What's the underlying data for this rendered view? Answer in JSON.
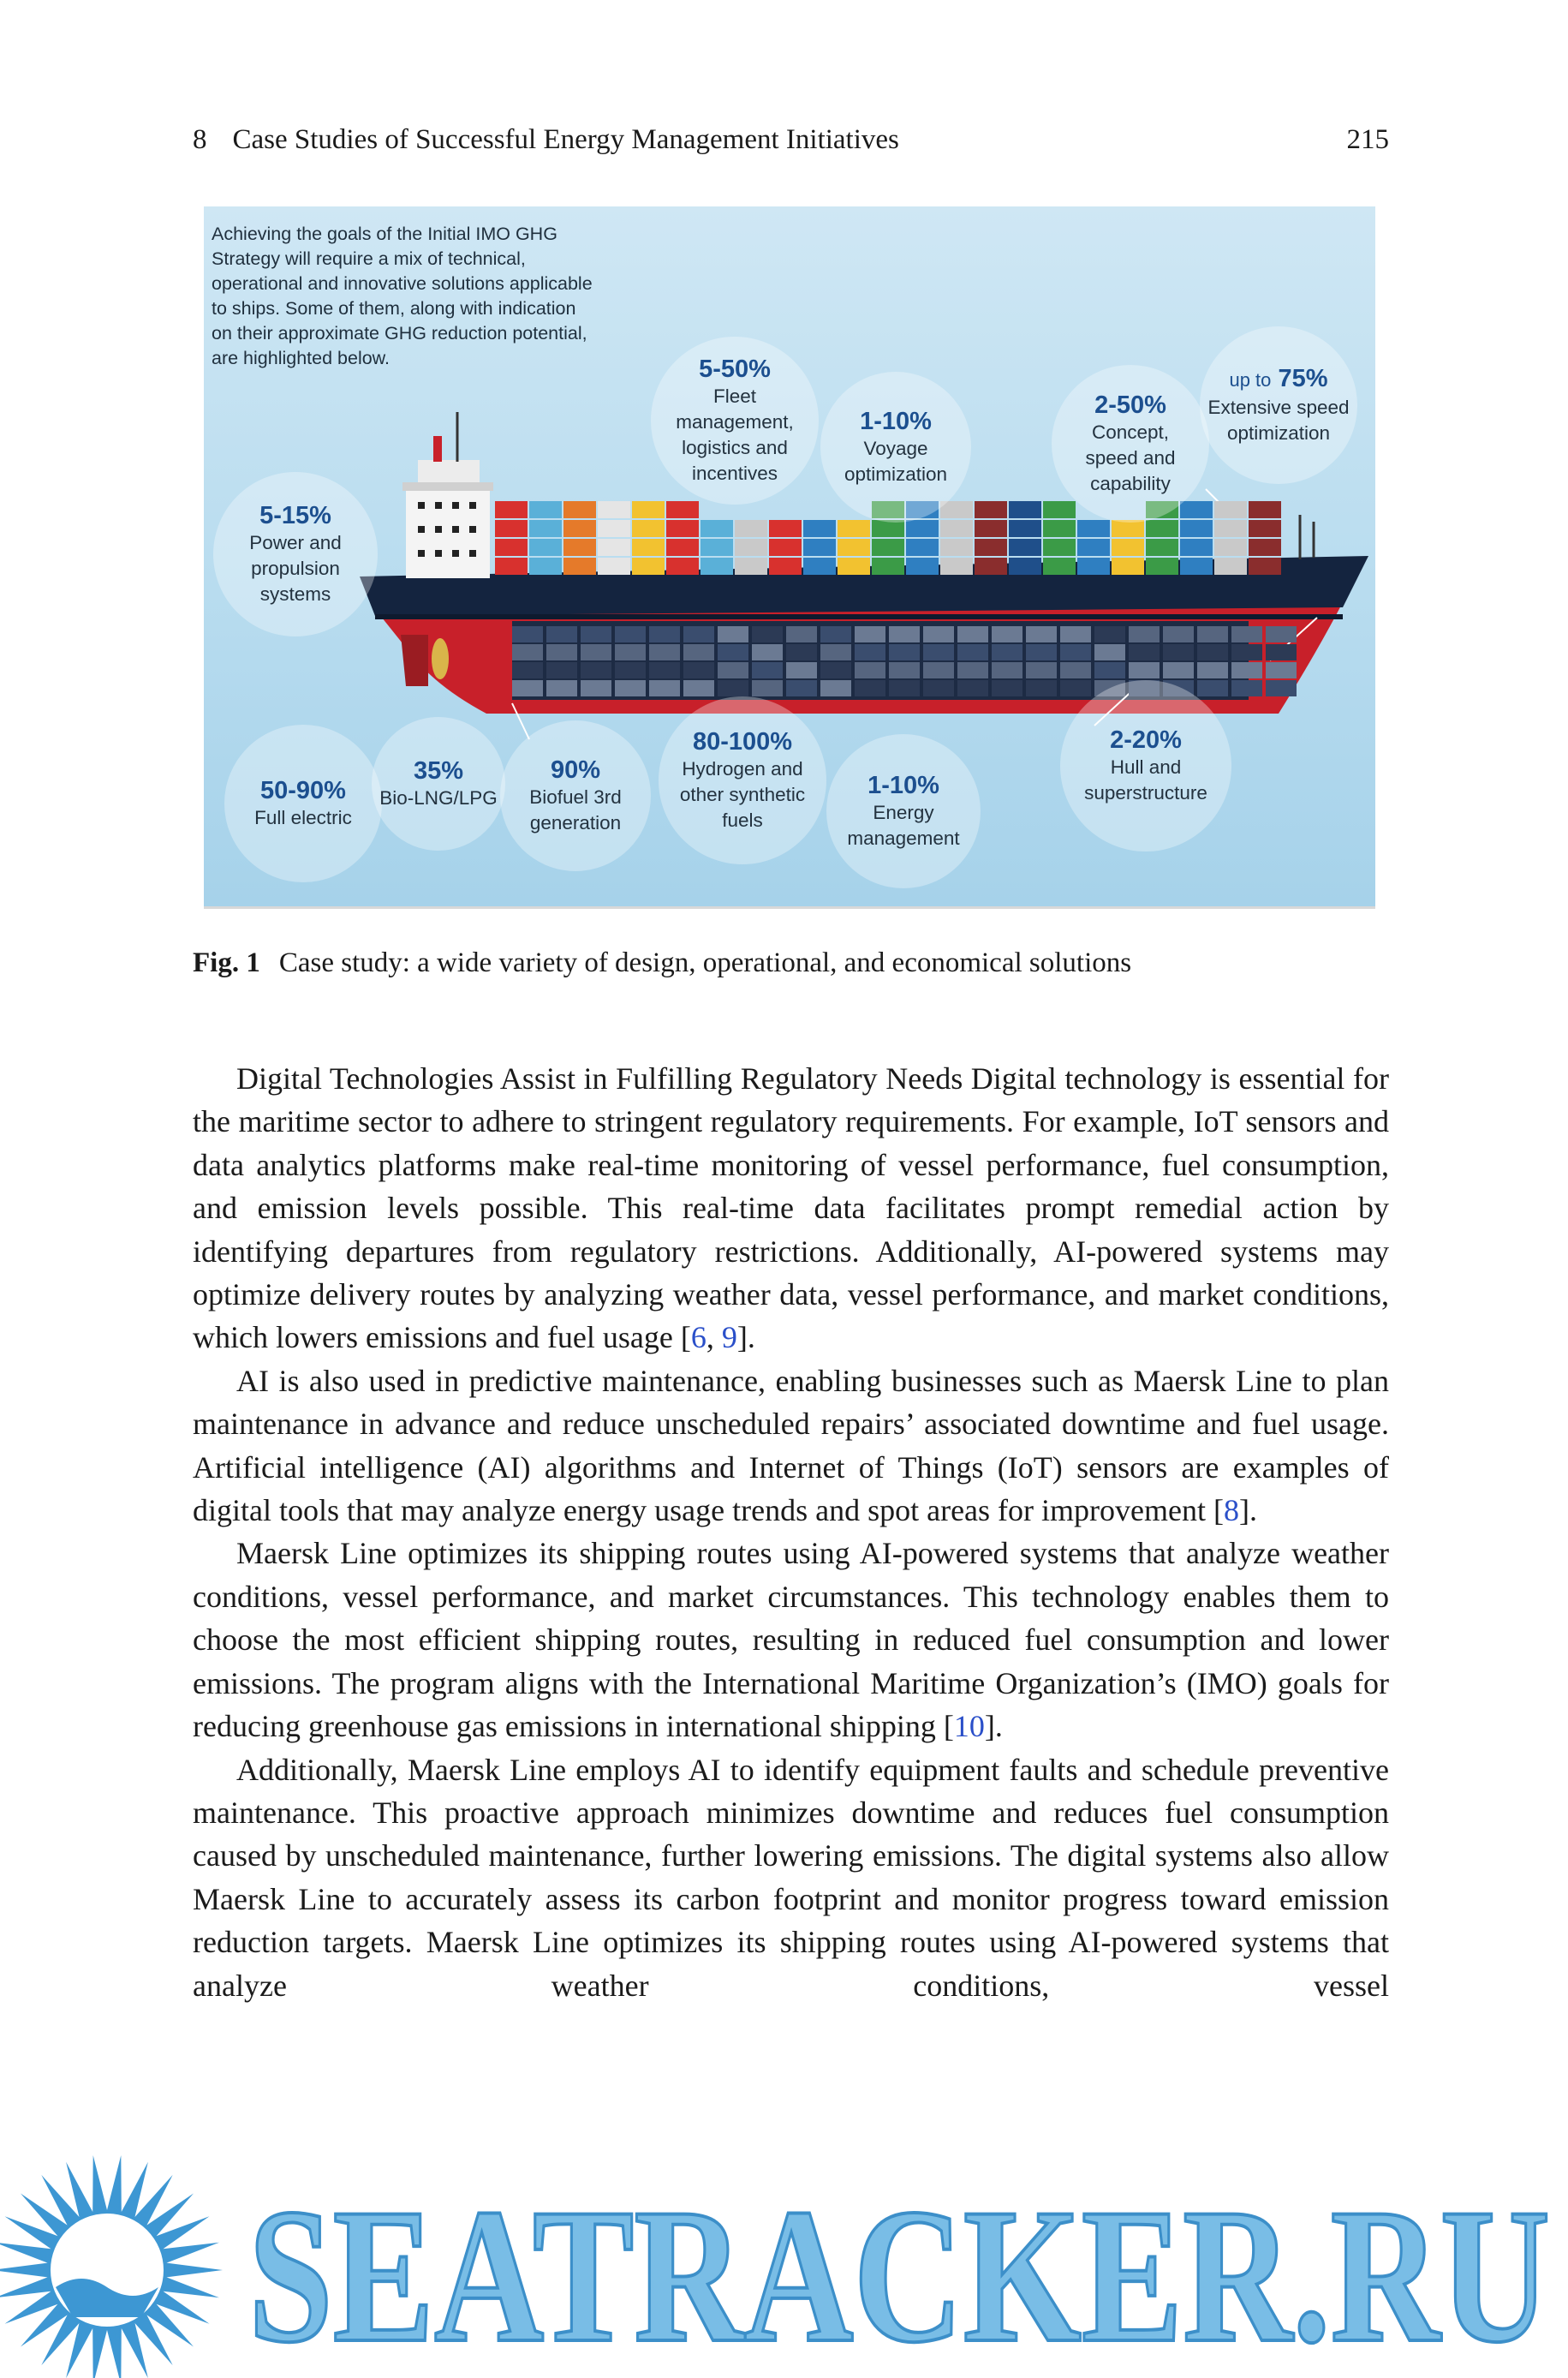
{
  "header": {
    "chapter": "8",
    "title": "Case Studies of Successful Energy Management Initiatives",
    "page": "215"
  },
  "figure": {
    "intro": "Achieving the goals of the Initial IMO GHG Strategy will require a mix of technical, operational and innovative solutions applicable to ships. Some of them, along with indication on their approximate GHG reduction potential, are highlighted below.",
    "labels": [
      {
        "value": "5-50%",
        "text": "Fleet\nmanagement,\nlogistics and\nincentives"
      },
      {
        "value": "1-10%",
        "text": "Voyage\noptimization"
      },
      {
        "value": "2-50%",
        "text": "Concept,\nspeed and\ncapability"
      },
      {
        "prefix": "up to",
        "value": "75%",
        "text": "Extensive speed\noptimization"
      },
      {
        "value": "5-15%",
        "text": "Power and\npropulsion\nsystems"
      },
      {
        "value": "50-90%",
        "text": "Full electric"
      },
      {
        "value": "35%",
        "text": "Bio-LNG/LPG"
      },
      {
        "value": "90%",
        "text": "Biofuel 3rd\ngeneration"
      },
      {
        "value": "80-100%",
        "text": "Hydrogen and\nother synthetic\nfuels"
      },
      {
        "value": "1-10%",
        "text": "Energy\nmanagement"
      },
      {
        "value": "2-20%",
        "text": "Hull and\nsuperstructure"
      }
    ]
  },
  "caption": {
    "label": "Fig. 1",
    "text": "Case study: a wide variety of design, operational, and economical solutions"
  },
  "paragraphs": [
    [
      {
        "text": "Digital Technologies Assist in Fulfilling Regulatory Needs Digital technology is essential for the maritime sector to adhere to stringent regulatory requirements. For example, IoT sensors and data analytics platforms make real-time monitoring of vessel performance, fuel consumption, and emission levels possible. This real-time data facilitates prompt remedial action by identifying departures from regulatory restrictions. Additionally, AI-powered systems may optimize delivery routes by analyzing weather data, vessel performance, and market conditions, which lowers emissions and fuel usage ["
      },
      {
        "text": "6",
        "ref": true
      },
      {
        "text": ", "
      },
      {
        "text": "9",
        "ref": true
      },
      {
        "text": "]."
      }
    ],
    [
      {
        "text": "AI is also used in predictive maintenance, enabling businesses such as Maersk Line to plan maintenance in advance and reduce unscheduled repairs’ associated downtime and fuel usage. Artificial intelligence (AI) algorithms and Internet of Things (IoT) sensors are examples of digital tools that may analyze energy usage trends and spot areas for improvement ["
      },
      {
        "text": "8",
        "ref": true
      },
      {
        "text": "]."
      }
    ],
    [
      {
        "text": "Maersk Line optimizes its shipping routes using AI-powered systems that analyze weather conditions, vessel performance, and market circumstances. This technology enables them to choose the most efficient shipping routes, resulting in reduced fuel consumption and lower emissions. The program aligns with the International Maritime Organization’s (IMO) goals for reducing greenhouse gas emissions in international shipping ["
      },
      {
        "text": "10",
        "ref": true
      },
      {
        "text": "]."
      }
    ],
    [
      {
        "text": "Additionally, Maersk Line employs AI to identify equipment faults and schedule preventive maintenance. This proactive approach minimizes downtime and reduces fuel consumption caused by unscheduled maintenance, further lowering emissions. The digital systems also allow Maersk Line to accurately assess its carbon footprint and monitor progress toward emission reduction targets. Maersk Line optimizes its shipping routes using AI-powered systems that analyze weather conditions, vessel"
      }
    ]
  ],
  "watermark": {
    "text": "SEATRACKER.RU"
  }
}
